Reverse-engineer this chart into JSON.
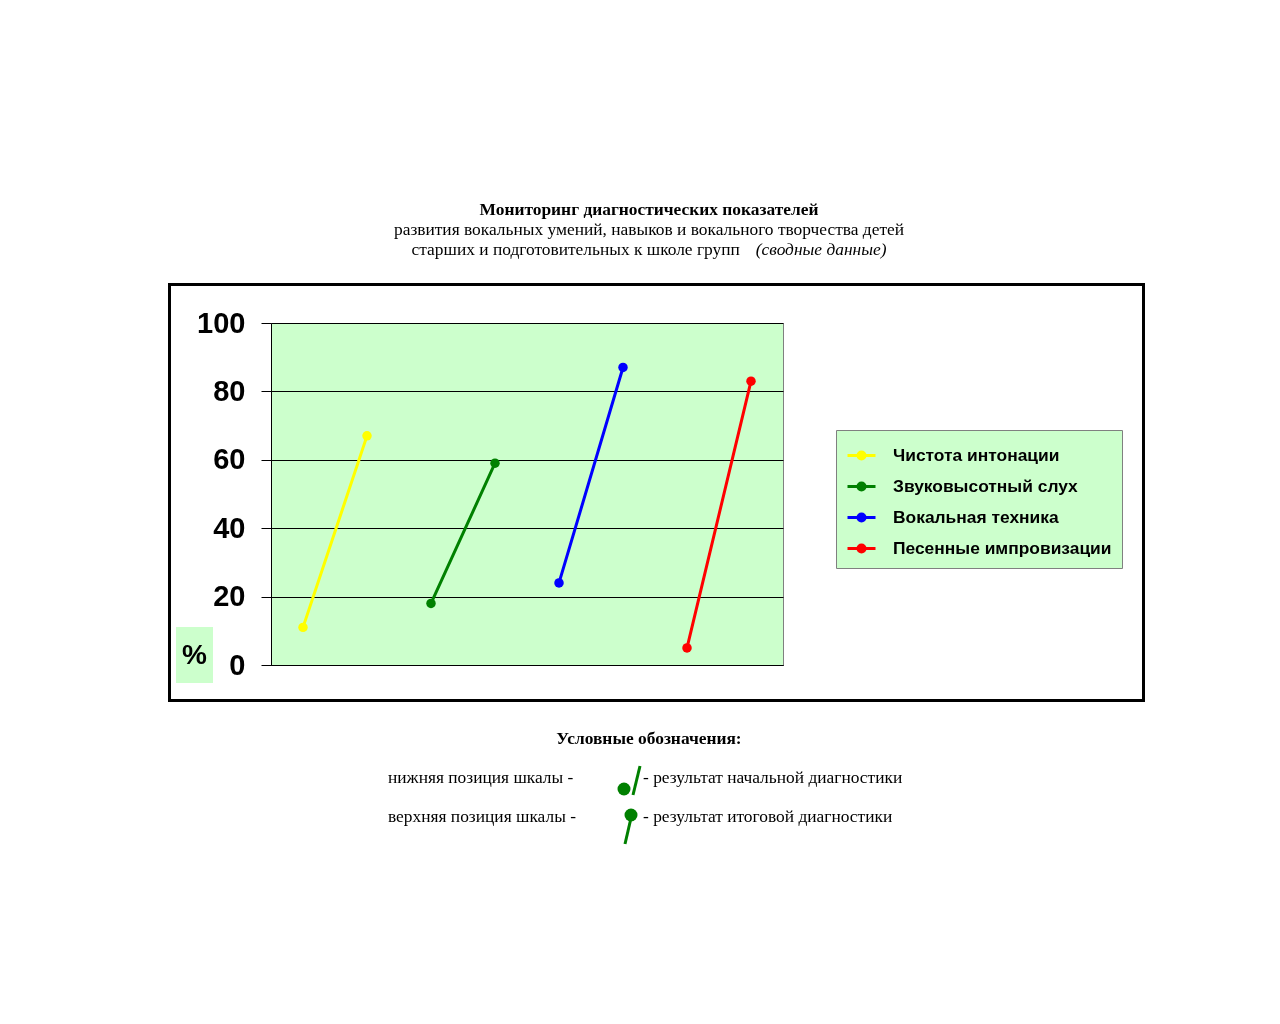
{
  "chart_data": {
    "type": "line",
    "title": "Мониторинг диагностических показателей",
    "subtitle": "развития вокальных умений, навыков и вокального творчества детей\nстарших и подготовительных к школе групп (сводные данные)",
    "ylabel": "%",
    "categories": [
      null,
      null,
      null,
      null,
      null,
      null,
      null,
      null
    ],
    "series": [
      {
        "name": "Чистота интонации",
        "color": "#ffff00",
        "values": [
          11,
          67,
          null,
          null,
          null,
          null,
          null,
          null
        ]
      },
      {
        "name": "Звуковысотный слух",
        "color": "#008000",
        "values": [
          null,
          null,
          18,
          59,
          null,
          null,
          null,
          null
        ]
      },
      {
        "name": "Вокальная техника",
        "color": "#0000ff",
        "values": [
          null,
          null,
          null,
          null,
          24,
          87,
          null,
          null
        ]
      },
      {
        "name": "Песенные импровизации",
        "color": "#ff0000",
        "values": [
          null,
          null,
          null,
          null,
          null,
          null,
          5,
          83
        ]
      }
    ],
    "ylim": [
      0,
      100
    ],
    "yticks": [
      0,
      20,
      40,
      60,
      80,
      100
    ],
    "grid": "y",
    "legend": "right",
    "marker": "circle",
    "line_style": "solid",
    "annotations": [
      "Условные обозначения:",
      "нижняя позиция шкалы -",
      "- результат начальной диагностики",
      "верхняя позиция шкалы -",
      "- результат итоговой диагностики"
    ]
  }
}
